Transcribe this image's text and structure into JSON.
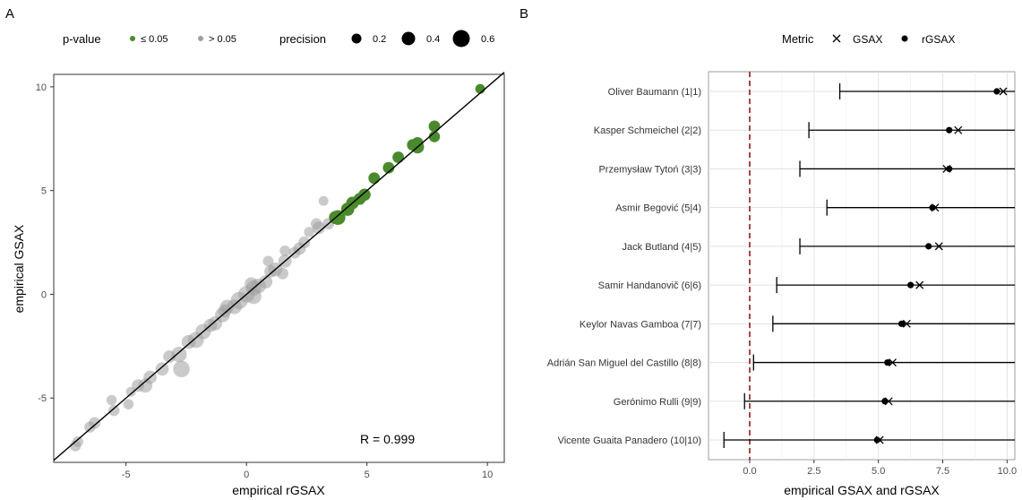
{
  "panel_a_letter": "A",
  "panel_b_letter": "B",
  "colors": {
    "significant": "#4a8a2c",
    "nonsignificant": "#9e9e9e",
    "ref_line": "#8b1a1a",
    "grid": "#e3e3e3"
  },
  "chart_data": [
    {
      "type": "scatter",
      "xlabel": "empirical rGSAX",
      "ylabel": "empirical GSAX",
      "xlim": [
        -8,
        10.7
      ],
      "ylim": [
        -8.1,
        10.6
      ],
      "xticks": [
        -5,
        0,
        5,
        10
      ],
      "yticks": [
        -5,
        0,
        5,
        10
      ],
      "annotation": "R = 0.999",
      "legend": {
        "pvalue_title": "p-value",
        "pvalue_items": [
          "≤ 0.05",
          "> 0.05"
        ],
        "precision_title": "precision",
        "precision_items": [
          "0.2",
          "0.4",
          "0.6"
        ],
        "precision_values": [
          0.2,
          0.4,
          0.6
        ],
        "placement": "top"
      },
      "fit_line": {
        "intercept": 0.0,
        "slope": 1.0
      },
      "points": [
        {
          "x": 9.7,
          "y": 9.9,
          "p": 0.04,
          "size": 0.12
        },
        {
          "x": 7.8,
          "y": 8.1,
          "p": 0.04,
          "size": 0.2
        },
        {
          "x": 7.8,
          "y": 7.6,
          "p": 0.04,
          "size": 0.18
        },
        {
          "x": 7.1,
          "y": 7.3,
          "p": 0.04,
          "size": 0.2
        },
        {
          "x": 7.1,
          "y": 7.1,
          "p": 0.04,
          "size": 0.28
        },
        {
          "x": 6.3,
          "y": 6.6,
          "p": 0.04,
          "size": 0.2
        },
        {
          "x": 5.9,
          "y": 6.1,
          "p": 0.04,
          "size": 0.2
        },
        {
          "x": 5.3,
          "y": 5.6,
          "p": 0.04,
          "size": 0.2
        },
        {
          "x": 4.9,
          "y": 4.8,
          "p": 0.04,
          "size": 0.24
        },
        {
          "x": 4.7,
          "y": 4.6,
          "p": 0.04,
          "size": 0.22
        },
        {
          "x": 4.4,
          "y": 4.4,
          "p": 0.04,
          "size": 0.26
        },
        {
          "x": 4.2,
          "y": 4.1,
          "p": 0.04,
          "size": 0.3
        },
        {
          "x": 3.8,
          "y": 3.7,
          "p": 0.04,
          "size": 0.4
        },
        {
          "x": 3.7,
          "y": 3.7,
          "p": 0.04,
          "size": 0.3
        },
        {
          "x": 6.9,
          "y": 7.2,
          "p": 0.04,
          "size": 0.2
        },
        {
          "x": 3.2,
          "y": 4.5,
          "p": 0.3,
          "size": 0.12
        },
        {
          "x": 3.4,
          "y": 3.4,
          "p": 0.3,
          "size": 0.2
        },
        {
          "x": 3.0,
          "y": 3.2,
          "p": 0.3,
          "size": 0.25
        },
        {
          "x": 2.9,
          "y": 3.4,
          "p": 0.3,
          "size": 0.18
        },
        {
          "x": 2.6,
          "y": 3.0,
          "p": 0.3,
          "size": 0.14
        },
        {
          "x": 2.2,
          "y": 2.2,
          "p": 0.3,
          "size": 0.25
        },
        {
          "x": 2.0,
          "y": 2.0,
          "p": 0.3,
          "size": 0.2
        },
        {
          "x": 1.6,
          "y": 2.1,
          "p": 0.3,
          "size": 0.15
        },
        {
          "x": 1.6,
          "y": 1.6,
          "p": 0.3,
          "size": 0.3
        },
        {
          "x": 1.2,
          "y": 1.2,
          "p": 0.3,
          "size": 0.35
        },
        {
          "x": 1.0,
          "y": 1.1,
          "p": 0.3,
          "size": 0.25
        },
        {
          "x": 0.8,
          "y": 0.6,
          "p": 0.3,
          "size": 0.3
        },
        {
          "x": 0.5,
          "y": 0.4,
          "p": 0.3,
          "size": 0.4
        },
        {
          "x": 0.3,
          "y": 0.3,
          "p": 0.3,
          "size": 0.45
        },
        {
          "x": 0.2,
          "y": 0.5,
          "p": 0.3,
          "size": 0.3
        },
        {
          "x": 0.0,
          "y": 0.0,
          "p": 0.3,
          "size": 0.55
        },
        {
          "x": -0.3,
          "y": -0.3,
          "p": 0.3,
          "size": 0.6
        },
        {
          "x": 0.3,
          "y": -0.1,
          "p": 0.3,
          "size": 0.45
        },
        {
          "x": -0.5,
          "y": -0.6,
          "p": 0.3,
          "size": 0.4
        },
        {
          "x": -0.8,
          "y": -0.6,
          "p": 0.3,
          "size": 0.35
        },
        {
          "x": -1.0,
          "y": -1.0,
          "p": 0.3,
          "size": 0.4
        },
        {
          "x": -1.3,
          "y": -1.4,
          "p": 0.3,
          "size": 0.35
        },
        {
          "x": -1.5,
          "y": -1.5,
          "p": 0.3,
          "size": 0.3
        },
        {
          "x": -1.8,
          "y": -1.8,
          "p": 0.3,
          "size": 0.45
        },
        {
          "x": -2.1,
          "y": -2.2,
          "p": 0.3,
          "size": 0.5
        },
        {
          "x": -2.4,
          "y": -2.3,
          "p": 0.3,
          "size": 0.35
        },
        {
          "x": -2.8,
          "y": -2.9,
          "p": 0.3,
          "size": 0.45
        },
        {
          "x": -2.7,
          "y": -3.6,
          "p": 0.3,
          "size": 0.55
        },
        {
          "x": -3.2,
          "y": -3.0,
          "p": 0.3,
          "size": 0.25
        },
        {
          "x": -3.5,
          "y": -3.6,
          "p": 0.3,
          "size": 0.3
        },
        {
          "x": -4.0,
          "y": -4.0,
          "p": 0.3,
          "size": 0.3
        },
        {
          "x": -4.2,
          "y": -4.4,
          "p": 0.3,
          "size": 0.35
        },
        {
          "x": -4.5,
          "y": -4.4,
          "p": 0.3,
          "size": 0.25
        },
        {
          "x": -4.8,
          "y": -4.7,
          "p": 0.3,
          "size": 0.12
        },
        {
          "x": -4.9,
          "y": -5.3,
          "p": 0.3,
          "size": 0.14
        },
        {
          "x": -5.5,
          "y": -5.6,
          "p": 0.3,
          "size": 0.18
        },
        {
          "x": -5.6,
          "y": -5.1,
          "p": 0.3,
          "size": 0.14
        },
        {
          "x": -6.3,
          "y": -6.2,
          "p": 0.3,
          "size": 0.2
        },
        {
          "x": -6.5,
          "y": -6.4,
          "p": 0.3,
          "size": 0.18
        },
        {
          "x": -7.0,
          "y": -7.1,
          "p": 0.3,
          "size": 0.16
        },
        {
          "x": -7.1,
          "y": -7.3,
          "p": 0.3,
          "size": 0.18
        },
        {
          "x": 1.5,
          "y": 1.0,
          "p": 0.3,
          "size": 0.2
        },
        {
          "x": 0.9,
          "y": 1.6,
          "p": 0.3,
          "size": 0.15
        },
        {
          "x": 2.4,
          "y": 2.5,
          "p": 0.3,
          "size": 0.22
        },
        {
          "x": -0.9,
          "y": -0.8,
          "p": 0.3,
          "size": 0.3
        }
      ]
    },
    {
      "type": "errorbar",
      "xlabel": "empirical GSAX and rGSAX",
      "xlim": [
        -1.6,
        10.3
      ],
      "xticks": [
        "0.0",
        "2.5",
        "5.0",
        "7.5",
        "10.0"
      ],
      "xtick_values": [
        0,
        2.5,
        5,
        7.5,
        10
      ],
      "reference_line": 0,
      "legend": {
        "title": "Metric",
        "items": [
          "GSAX",
          "rGSAX"
        ],
        "placement": "top"
      },
      "rows": [
        {
          "label": "Oliver Baumann (1|1)",
          "gsax": 9.85,
          "rgsax": 9.6,
          "lower": 3.5,
          "upper": 10.3
        },
        {
          "label": "Kasper Schmeichel (2|2)",
          "gsax": 8.1,
          "rgsax": 7.75,
          "lower": 2.3,
          "upper": 10.3
        },
        {
          "label": "Przemysław Tytoń (3|3)",
          "gsax": 7.65,
          "rgsax": 7.75,
          "lower": 1.95,
          "upper": 10.3
        },
        {
          "label": "Asmir Begović (5|4)",
          "gsax": 7.2,
          "rgsax": 7.1,
          "lower": 3.0,
          "upper": 10.3
        },
        {
          "label": "Jack Butland (4|5)",
          "gsax": 7.35,
          "rgsax": 6.95,
          "lower": 1.95,
          "upper": 10.3
        },
        {
          "label": "Samir Handanovič (6|6)",
          "gsax": 6.6,
          "rgsax": 6.25,
          "lower": 1.05,
          "upper": 10.3
        },
        {
          "label": "Keylor Navas Gamboa (7|7)",
          "gsax": 6.1,
          "rgsax": 5.9,
          "lower": 0.9,
          "upper": 10.3
        },
        {
          "label": "Adrián San Miguel del Castillo (8|8)",
          "gsax": 5.55,
          "rgsax": 5.35,
          "lower": 0.15,
          "upper": 10.3
        },
        {
          "label": "Gerónimo Rulli (9|9)",
          "gsax": 5.4,
          "rgsax": 5.25,
          "lower": -0.2,
          "upper": 10.3
        },
        {
          "label": "Vicente Guaita Panadero (10|10)",
          "gsax": 5.05,
          "rgsax": 4.95,
          "lower": -1.0,
          "upper": 10.3
        }
      ]
    }
  ]
}
